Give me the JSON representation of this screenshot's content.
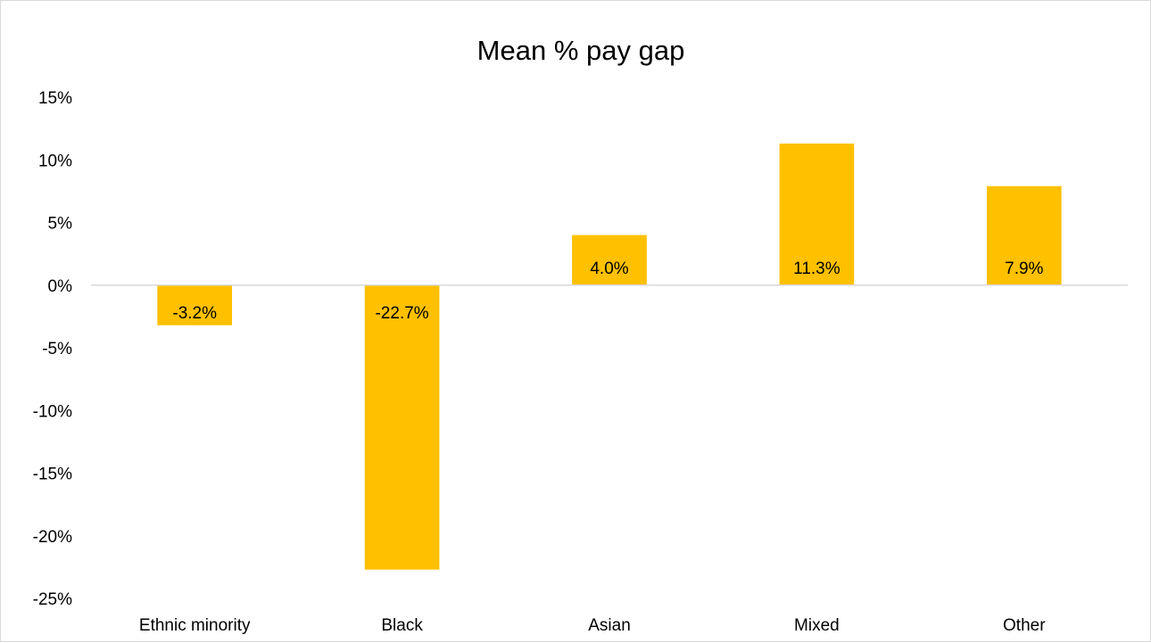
{
  "chart_data": {
    "type": "bar",
    "title": "Mean % pay gap",
    "xlabel": "",
    "ylabel": "",
    "categories": [
      "Ethnic minority",
      "Black",
      "Asian",
      "Mixed",
      "Other"
    ],
    "values": [
      -3.2,
      -22.7,
      4.0,
      11.3,
      7.9
    ],
    "data_labels": [
      "-3.2%",
      "-22.7%",
      "4.0%",
      "11.3%",
      "7.9%"
    ],
    "ylim": [
      -25,
      15
    ],
    "y_ticks": [
      15,
      10,
      5,
      0,
      -5,
      -10,
      -15,
      -20,
      -25
    ],
    "y_tick_labels": [
      "15%",
      "10%",
      "5%",
      "0%",
      "-5%",
      "-10%",
      "-15%",
      "-20%",
      "-25%"
    ],
    "grid": false,
    "legend": "none",
    "bar_color": "#ffc000",
    "zero_line_color": "#d9d9d9"
  }
}
